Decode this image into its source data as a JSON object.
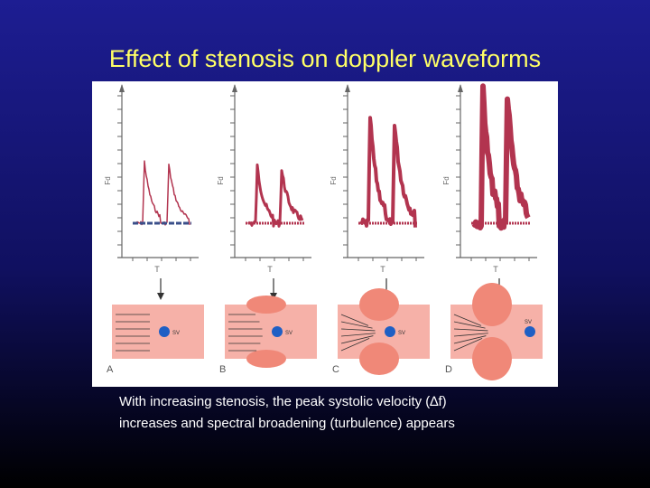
{
  "title": "Effect of stenosis on doppler waveforms",
  "panels": [
    {
      "label": "A",
      "y_axis": "Fd",
      "x_axis": "T",
      "sample": "SV"
    },
    {
      "label": "B",
      "y_axis": "Fd",
      "x_axis": "T",
      "sample": "SV"
    },
    {
      "label": "C",
      "y_axis": "Fd",
      "x_axis": "T",
      "sample": "SV"
    },
    {
      "label": "D",
      "y_axis": "Fd",
      "x_axis": "T",
      "sample": "SV"
    }
  ],
  "caption": [
    "With increasing stenosis, the peak systolic velocity (∆f)",
    "increases and spectral broadening (turbulence) appears"
  ]
}
